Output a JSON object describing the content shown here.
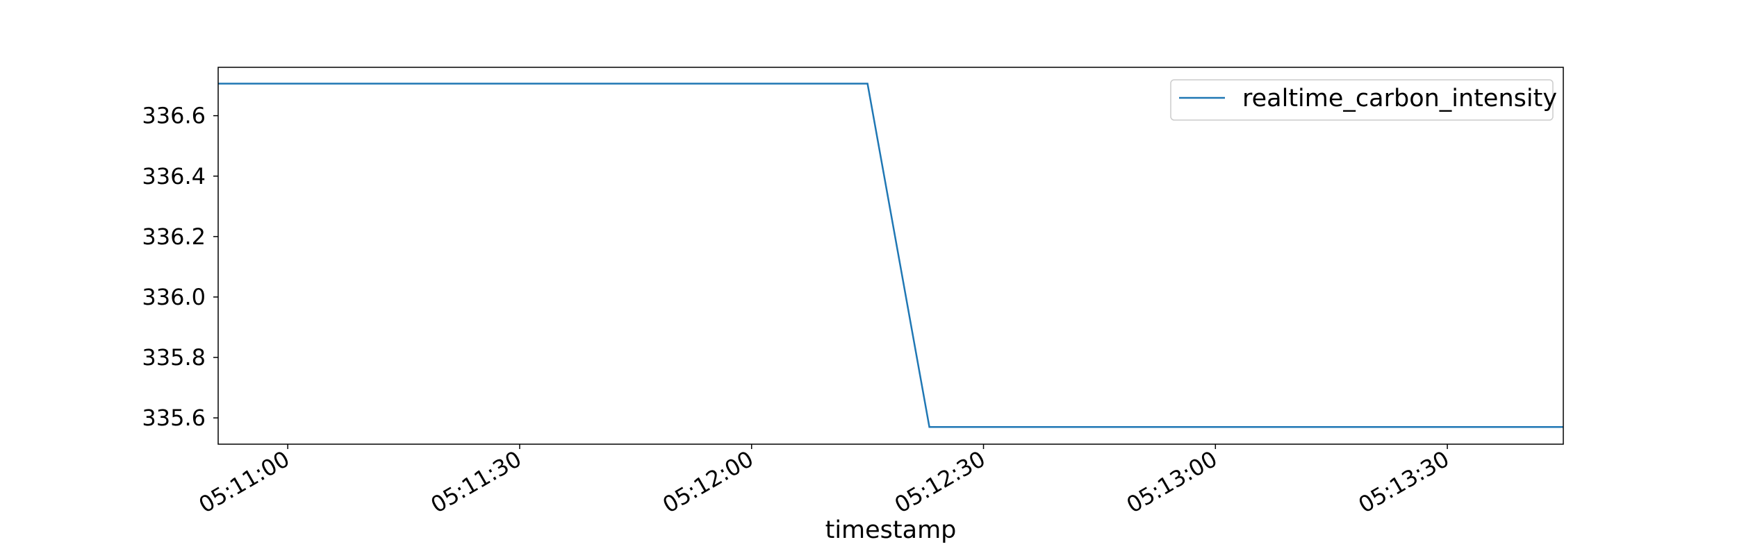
{
  "chart_data": {
    "type": "line",
    "title": "",
    "xlabel": "timestamp",
    "ylabel": "",
    "x_tick_labels": [
      "05:11:00",
      "05:11:30",
      "05:12:00",
      "05:12:30",
      "05:13:00",
      "05:13:30"
    ],
    "x_tick_times": [
      "05:11:00",
      "05:11:30",
      "05:12:00",
      "05:12:30",
      "05:13:00",
      "05:13:30"
    ],
    "xlim": [
      "05:10:51",
      "05:13:45"
    ],
    "y_tick_labels": [
      "335.6",
      "335.8",
      "336.0",
      "336.2",
      "336.4",
      "336.6"
    ],
    "y_tick_values": [
      335.6,
      335.8,
      336.0,
      336.2,
      336.4,
      336.6
    ],
    "ylim": [
      335.513,
      336.76
    ],
    "grid": false,
    "legend_position": "top-right",
    "series": [
      {
        "name": "realtime_carbon_intensity",
        "color": "#1f77b4",
        "x": [
          "05:10:51",
          "05:12:15",
          "05:12:23",
          "05:13:45"
        ],
        "y": [
          336.706,
          336.706,
          335.57,
          335.57
        ]
      }
    ]
  }
}
